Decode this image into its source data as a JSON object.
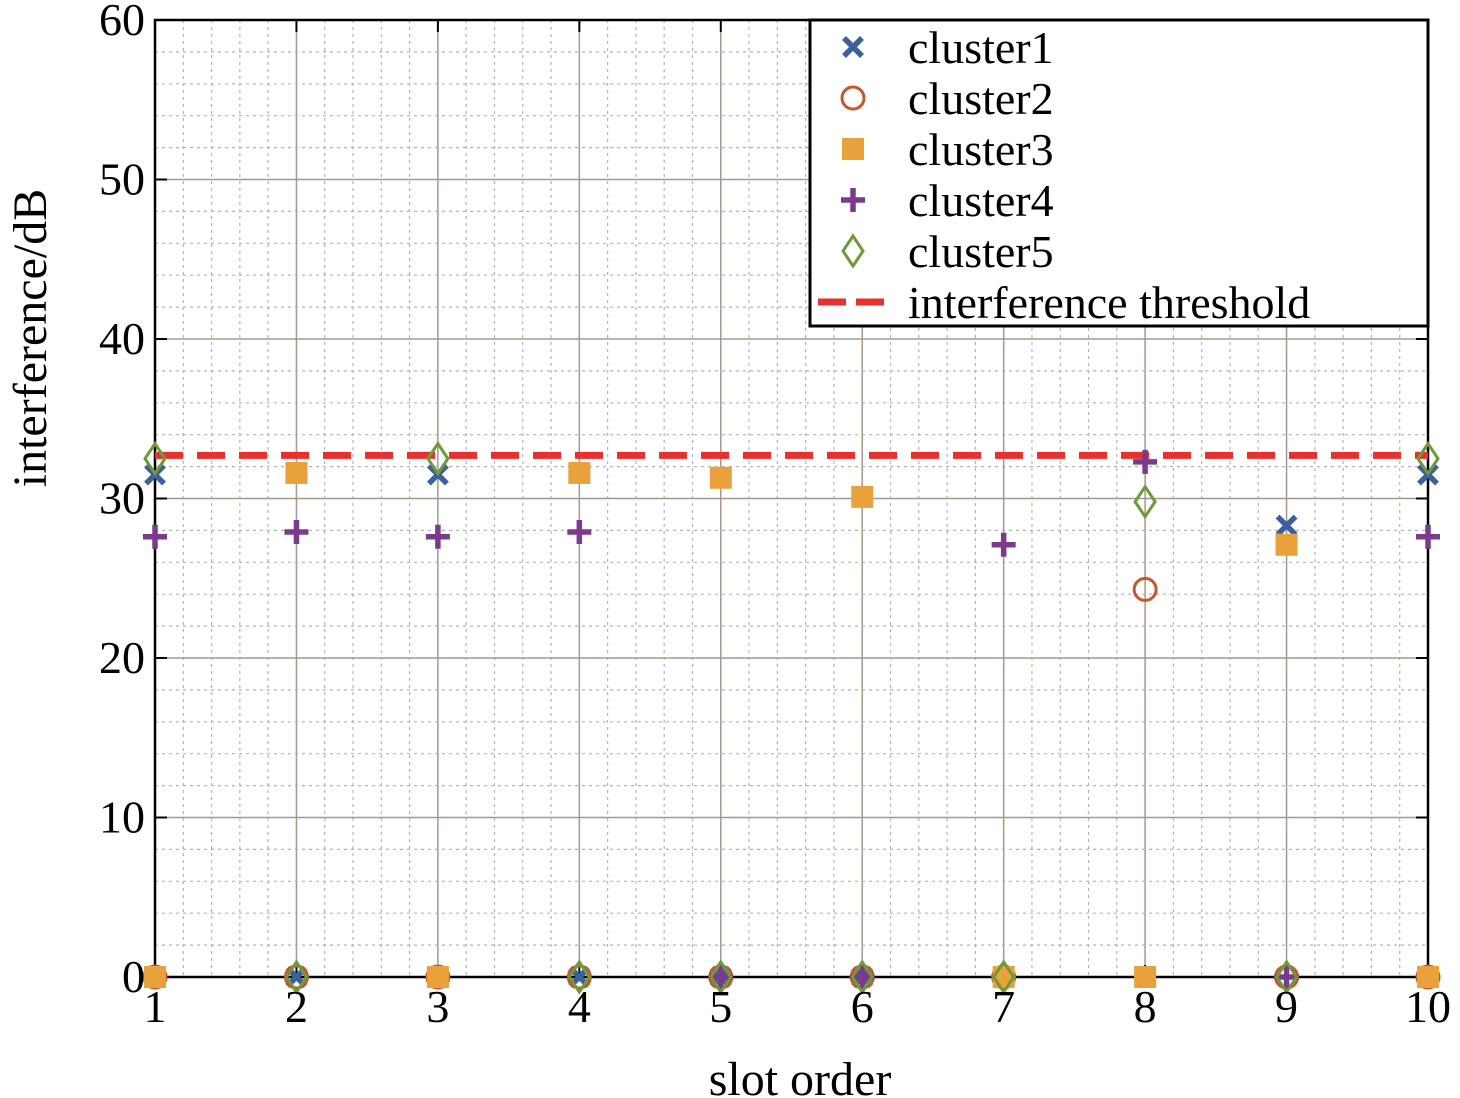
{
  "chart_data": {
    "type": "scatter",
    "xlabel": "slot order",
    "ylabel": "interference/dB",
    "xlim": [
      1,
      10
    ],
    "ylim": [
      0,
      60
    ],
    "xticks": [
      "1",
      "2",
      "3",
      "4",
      "5",
      "6",
      "7",
      "8",
      "9",
      "10"
    ],
    "yticks": [
      "0",
      "10",
      "20",
      "30",
      "40",
      "50",
      "60"
    ],
    "grid": true,
    "legend_position": "top-right",
    "series": [
      {
        "name": "cluster1",
        "marker": "x",
        "color": "#3c5f9e",
        "x": [
          1,
          2,
          3,
          4,
          5,
          6,
          7,
          8,
          9,
          10
        ],
        "y": [
          31.5,
          0,
          31.5,
          0,
          0,
          0,
          0,
          0,
          28.3,
          31.5
        ]
      },
      {
        "name": "cluster2",
        "marker": "circle-open",
        "color": "#c8552b",
        "x": [
          1,
          2,
          3,
          4,
          5,
          6,
          7,
          8,
          9,
          10
        ],
        "y": [
          0,
          0,
          0,
          0,
          0,
          0,
          0,
          24.3,
          0,
          0
        ]
      },
      {
        "name": "cluster3",
        "marker": "square",
        "color": "#e9a23b",
        "x": [
          1,
          2,
          3,
          4,
          5,
          6,
          7,
          8,
          9,
          10
        ],
        "y": [
          0,
          31.6,
          0,
          31.6,
          31.3,
          30.1,
          0,
          0,
          27.1,
          0
        ]
      },
      {
        "name": "cluster4",
        "marker": "plus",
        "color": "#7b3a8c",
        "x": [
          1,
          2,
          3,
          4,
          5,
          6,
          7,
          8,
          9,
          10
        ],
        "y": [
          27.6,
          27.9,
          27.6,
          27.9,
          0,
          0,
          27.1,
          32.3,
          0,
          27.6
        ]
      },
      {
        "name": "cluster5",
        "marker": "diamond-open",
        "color": "#6e9a3a",
        "x": [
          1,
          2,
          3,
          4,
          5,
          6,
          7,
          8,
          9,
          10
        ],
        "y": [
          32.5,
          0,
          32.5,
          0,
          0,
          0,
          0,
          29.8,
          0,
          32.5
        ]
      },
      {
        "name": "interference threshold",
        "marker": "dashed-line",
        "color": "#e8312f",
        "x": [
          1,
          10
        ],
        "y": [
          32.7,
          32.7
        ]
      }
    ]
  }
}
